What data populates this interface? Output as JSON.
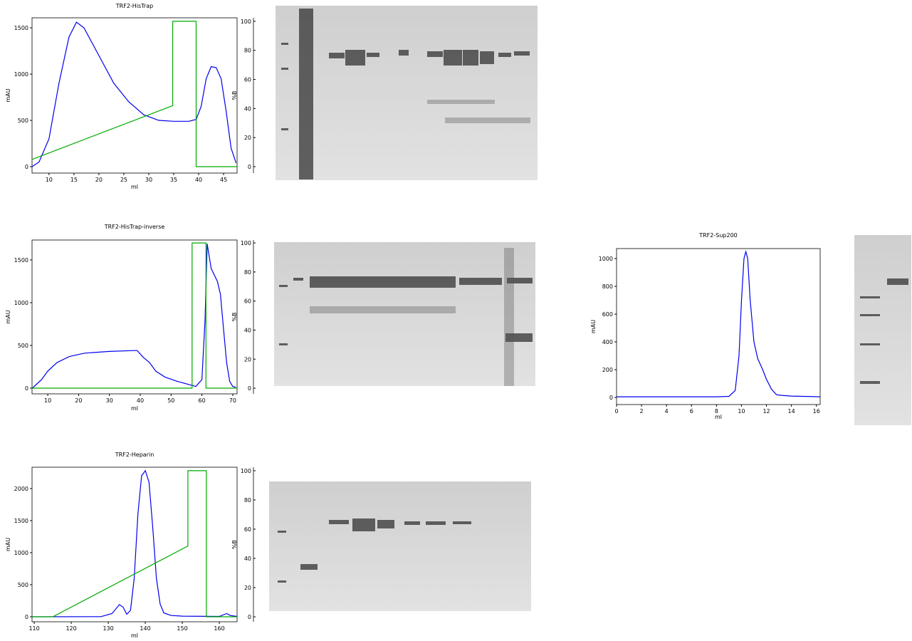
{
  "chart_data": [
    {
      "type": "line",
      "title": "TRF2-HisTrap",
      "x_label": "ml",
      "y_label": "mAU",
      "y2_label": "%B",
      "xlim": [
        6.6,
        47.7
      ],
      "xticks": [
        10,
        15,
        20,
        25,
        30,
        35,
        40,
        45
      ],
      "ylim": [
        -69,
        1608
      ],
      "yticks": [
        0,
        500,
        1000,
        1500
      ],
      "y2lim": [
        -4.4,
        102.4
      ],
      "y2ticks": [
        0,
        20,
        40,
        60,
        80,
        100
      ],
      "series": [
        {
          "color": "#0000ee",
          "x": [
            6.6,
            8,
            10,
            12,
            14,
            15.5,
            17,
            20,
            23,
            26,
            29,
            32,
            35,
            38,
            39.5,
            40.5,
            41.5,
            42.5,
            43.5,
            44.5,
            45.5,
            46.5,
            47.5
          ],
          "values": [
            0,
            50,
            300,
            900,
            1400,
            1560,
            1500,
            1200,
            900,
            700,
            560,
            500,
            490,
            490,
            510,
            650,
            950,
            1080,
            1070,
            950,
            600,
            200,
            40
          ]
        },
        {
          "color": "#00aa00",
          "axis": "y2",
          "x": [
            6.6,
            34.8,
            34.8,
            39.5,
            39.5,
            47.7
          ],
          "values": [
            5,
            42,
            100,
            100,
            0,
            0
          ]
        }
      ]
    },
    {
      "type": "line",
      "title": "TRF2-HisTrap-inverse",
      "x_label": "ml",
      "y_label": "mAU",
      "y2_label": "%B",
      "xlim": [
        4.9,
        71.4
      ],
      "xticks": [
        10,
        20,
        30,
        40,
        50,
        60,
        70
      ],
      "ylim": [
        -67,
        1733
      ],
      "yticks": [
        0,
        500,
        1000,
        1500
      ],
      "y2lim": [
        -3.9,
        102
      ],
      "y2ticks": [
        0,
        20,
        40,
        60,
        80,
        100
      ],
      "series": [
        {
          "color": "#0000ee",
          "x": [
            5,
            8,
            10,
            13,
            17,
            22,
            30,
            38,
            39,
            41,
            43,
            45,
            48,
            52,
            56,
            58,
            59,
            60,
            61,
            61.7,
            63,
            65,
            66,
            67,
            68,
            69,
            70,
            71
          ],
          "values": [
            0,
            100,
            200,
            300,
            370,
            410,
            430,
            440,
            440,
            360,
            300,
            200,
            130,
            80,
            40,
            20,
            60,
            100,
            800,
            1690,
            1400,
            1250,
            1100,
            700,
            300,
            80,
            20,
            10
          ]
        },
        {
          "color": "#00aa00",
          "axis": "y2",
          "x": [
            4.9,
            56.8,
            56.8,
            61.3,
            61.3,
            71.4
          ],
          "values": [
            0,
            0,
            100,
            100,
            0,
            0
          ]
        }
      ]
    },
    {
      "type": "line",
      "title": "TRF2-Heparin",
      "x_label": "ml",
      "y_label": "mAU",
      "y2_label": "%B",
      "xlim": [
        109.4,
        164.8
      ],
      "xticks": [
        110,
        120,
        130,
        140,
        150,
        160
      ],
      "ylim": [
        -78,
        2333
      ],
      "yticks": [
        0,
        500,
        1000,
        1500,
        2000
      ],
      "y2lim": [
        -3.4,
        102.4
      ],
      "y2ticks": [
        0,
        20,
        40,
        60,
        80,
        100
      ],
      "series": [
        {
          "color": "#0000ee",
          "x": [
            109.4,
            128,
            131,
            133,
            134,
            135,
            136,
            137,
            138,
            139,
            140,
            141,
            142,
            143,
            144,
            145,
            147,
            150,
            160,
            162,
            163,
            164.8
          ],
          "values": [
            0,
            2,
            50,
            190,
            150,
            40,
            100,
            600,
            1600,
            2200,
            2280,
            2100,
            1400,
            600,
            200,
            60,
            20,
            10,
            5,
            50,
            20,
            5
          ]
        },
        {
          "color": "#00aa00",
          "axis": "y2",
          "x": [
            109.4,
            115,
            151.5,
            151.5,
            156.5,
            156.5,
            164.8
          ],
          "values": [
            0,
            0,
            48.5,
            100,
            100,
            0,
            0
          ]
        }
      ]
    },
    {
      "type": "line",
      "title": "TRF2-Sup200",
      "x_label": "ml",
      "y_label": "mAU",
      "xlim": [
        0,
        16.3
      ],
      "xticks": [
        0,
        2,
        4,
        6,
        8,
        10,
        12,
        14,
        16
      ],
      "ylim": [
        -51,
        1072
      ],
      "yticks": [
        0,
        200,
        400,
        600,
        800,
        1000
      ],
      "series": [
        {
          "color": "#0000ee",
          "x": [
            0,
            8,
            9,
            9.5,
            9.8,
            10,
            10.2,
            10.35,
            10.5,
            10.7,
            11,
            11.3,
            11.7,
            12,
            12.4,
            12.8,
            13.2,
            14,
            16.3
          ],
          "values": [
            5,
            5,
            8,
            50,
            300,
            700,
            1000,
            1050,
            1000,
            700,
            400,
            280,
            200,
            130,
            60,
            20,
            15,
            10,
            5
          ]
        }
      ]
    }
  ]
}
